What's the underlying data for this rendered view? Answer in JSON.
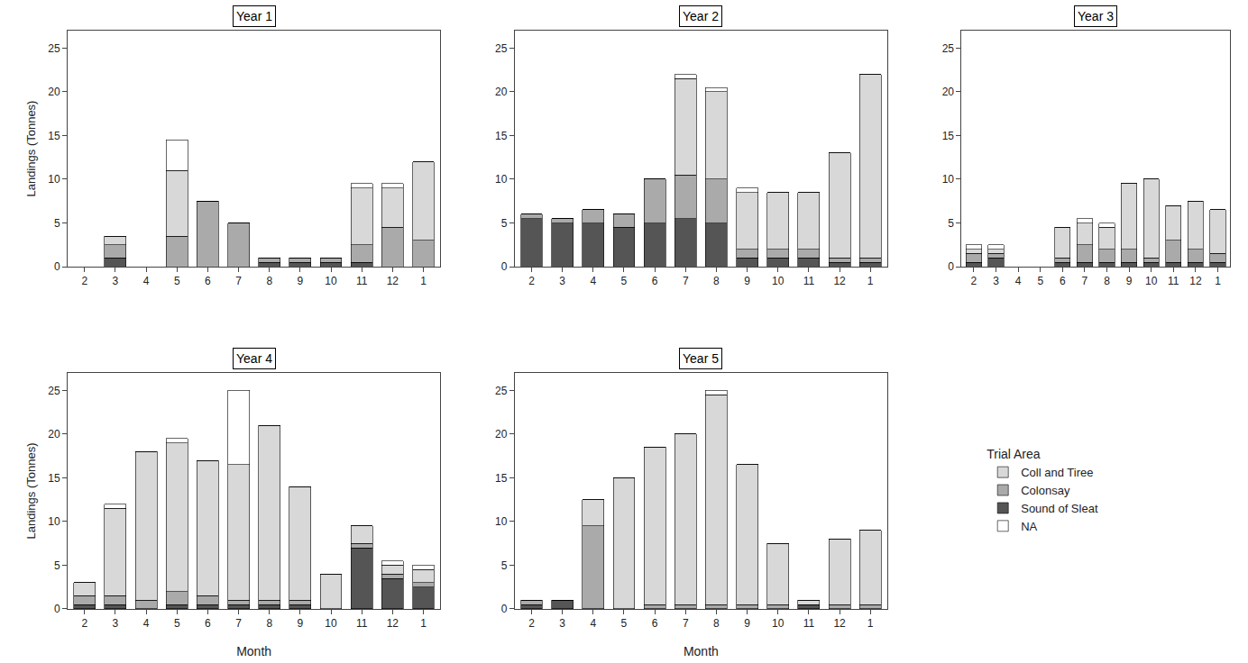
{
  "chart_data": [
    {
      "type": "bar",
      "title": "Year 1",
      "ylabel": "Landings (Tonnes)",
      "stacked": true,
      "grid": false,
      "categories": [
        "2",
        "3",
        "4",
        "5",
        "6",
        "7",
        "8",
        "9",
        "10",
        "11",
        "12",
        "1"
      ],
      "series": [
        {
          "name": "Sound of Sleat",
          "color": "#555555",
          "values": [
            0.0,
            1.0,
            0.0,
            0.0,
            0.0,
            0.0,
            0.5,
            0.5,
            0.5,
            0.5,
            0.0,
            0.0
          ]
        },
        {
          "name": "Colonsay",
          "color": "#aaaaaa",
          "values": [
            0.0,
            1.5,
            0.0,
            3.5,
            7.5,
            5.0,
            0.5,
            0.5,
            0.5,
            2.0,
            4.5,
            3.0
          ]
        },
        {
          "name": "Coll and Tiree",
          "color": "#d8d8d8",
          "values": [
            0.0,
            1.0,
            0.0,
            7.5,
            0.0,
            0.0,
            0.0,
            0.0,
            0.0,
            6.5,
            4.5,
            9.0
          ]
        },
        {
          "name": "NA",
          "color": "#ffffff",
          "values": [
            0.0,
            0.0,
            0.0,
            3.5,
            0.0,
            0.0,
            0.0,
            0.0,
            0.0,
            0.5,
            0.5,
            0.0
          ]
        }
      ],
      "ylim": [
        0,
        27
      ],
      "yticks": [
        0,
        5,
        10,
        15,
        20,
        25
      ]
    },
    {
      "type": "bar",
      "title": "Year 2",
      "stacked": true,
      "grid": false,
      "categories": [
        "2",
        "3",
        "4",
        "5",
        "6",
        "7",
        "8",
        "9",
        "10",
        "11",
        "12",
        "1"
      ],
      "series": [
        {
          "name": "Sound of Sleat",
          "color": "#555555",
          "values": [
            5.5,
            5.0,
            5.0,
            4.5,
            5.0,
            5.5,
            5.0,
            1.0,
            1.0,
            1.0,
            0.5,
            0.5
          ]
        },
        {
          "name": "Colonsay",
          "color": "#aaaaaa",
          "values": [
            0.5,
            0.5,
            1.5,
            1.5,
            5.0,
            5.0,
            5.0,
            1.0,
            1.0,
            1.0,
            0.5,
            0.5
          ]
        },
        {
          "name": "Coll and Tiree",
          "color": "#d8d8d8",
          "values": [
            0.0,
            0.0,
            0.0,
            0.0,
            0.0,
            11.0,
            10.0,
            6.5,
            6.5,
            6.5,
            12.0,
            21.0
          ]
        },
        {
          "name": "NA",
          "color": "#ffffff",
          "values": [
            0.0,
            0.0,
            0.0,
            0.0,
            0.0,
            0.5,
            0.5,
            0.5,
            0.0,
            0.0,
            0.0,
            0.0
          ]
        }
      ],
      "ylim": [
        0,
        27
      ],
      "yticks": [
        0,
        5,
        10,
        15,
        20,
        25
      ]
    },
    {
      "type": "bar",
      "title": "Year 3",
      "stacked": true,
      "grid": false,
      "categories": [
        "2",
        "3",
        "4",
        "5",
        "6",
        "7",
        "8",
        "9",
        "10",
        "11",
        "12",
        "1"
      ],
      "series": [
        {
          "name": "Sound of Sleat",
          "color": "#555555",
          "values": [
            0.5,
            1.0,
            0.0,
            0.0,
            0.5,
            0.5,
            0.5,
            0.5,
            0.5,
            0.5,
            0.5,
            0.5
          ]
        },
        {
          "name": "Colonsay",
          "color": "#aaaaaa",
          "values": [
            1.0,
            0.5,
            0.0,
            0.0,
            0.5,
            2.0,
            1.5,
            1.5,
            0.5,
            2.5,
            1.5,
            1.0
          ]
        },
        {
          "name": "Coll and Tiree",
          "color": "#d8d8d8",
          "values": [
            0.5,
            0.5,
            0.0,
            0.0,
            3.5,
            2.5,
            2.5,
            7.5,
            9.0,
            4.0,
            5.5,
            5.0
          ]
        },
        {
          "name": "NA",
          "color": "#ffffff",
          "values": [
            0.5,
            0.5,
            0.0,
            0.0,
            0.0,
            0.5,
            0.5,
            0.0,
            0.0,
            0.0,
            0.0,
            0.0
          ]
        }
      ],
      "ylim": [
        0,
        27
      ],
      "yticks": [
        0,
        5,
        10,
        15,
        20,
        25
      ]
    },
    {
      "type": "bar",
      "title": "Year 4",
      "xlabel": "Month",
      "ylabel": "Landings (Tonnes)",
      "stacked": true,
      "grid": false,
      "categories": [
        "2",
        "3",
        "4",
        "5",
        "6",
        "7",
        "8",
        "9",
        "10",
        "11",
        "12",
        "1"
      ],
      "series": [
        {
          "name": "Sound of Sleat",
          "color": "#555555",
          "values": [
            0.5,
            0.5,
            0.0,
            0.5,
            0.5,
            0.5,
            0.5,
            0.5,
            0.0,
            7.0,
            3.5,
            2.5
          ]
        },
        {
          "name": "Colonsay",
          "color": "#aaaaaa",
          "values": [
            1.0,
            1.0,
            1.0,
            1.5,
            1.0,
            0.5,
            0.5,
            0.5,
            0.0,
            0.5,
            0.5,
            0.5
          ]
        },
        {
          "name": "Coll and Tiree",
          "color": "#d8d8d8",
          "values": [
            1.5,
            10.0,
            17.0,
            17.0,
            15.5,
            15.5,
            20.0,
            13.0,
            4.0,
            2.0,
            1.0,
            1.5
          ]
        },
        {
          "name": "NA",
          "color": "#ffffff",
          "values": [
            0.0,
            0.5,
            0.0,
            0.5,
            0.0,
            8.5,
            0.0,
            0.0,
            0.0,
            0.0,
            0.5,
            0.5
          ]
        }
      ],
      "ylim": [
        0,
        27
      ],
      "yticks": [
        0,
        5,
        10,
        15,
        20,
        25
      ]
    },
    {
      "type": "bar",
      "title": "Year 5",
      "xlabel": "Month",
      "stacked": true,
      "grid": false,
      "categories": [
        "2",
        "3",
        "4",
        "5",
        "6",
        "7",
        "8",
        "9",
        "10",
        "11",
        "12",
        "1"
      ],
      "series": [
        {
          "name": "Sound of Sleat",
          "color": "#555555",
          "values": [
            0.5,
            1.0,
            0.0,
            0.0,
            0.0,
            0.0,
            0.0,
            0.0,
            0.0,
            0.5,
            0.0,
            0.0
          ]
        },
        {
          "name": "Colonsay",
          "color": "#aaaaaa",
          "values": [
            0.5,
            0.0,
            9.5,
            0.0,
            0.5,
            0.5,
            0.5,
            0.5,
            0.5,
            0.0,
            0.5,
            0.5
          ]
        },
        {
          "name": "Coll and Tiree",
          "color": "#d8d8d8",
          "values": [
            0.0,
            0.0,
            3.0,
            15.0,
            18.0,
            19.5,
            24.0,
            16.0,
            7.0,
            0.5,
            7.5,
            8.5
          ]
        },
        {
          "name": "NA",
          "color": "#ffffff",
          "values": [
            0.0,
            0.0,
            0.0,
            0.0,
            0.0,
            0.0,
            0.5,
            0.0,
            0.0,
            0.0,
            0.0,
            0.0
          ]
        }
      ],
      "ylim": [
        0,
        27
      ],
      "yticks": [
        0,
        5,
        10,
        15,
        20,
        25
      ],
      "legend": "right",
      "legend_title": "Trial Area",
      "legend_labels": [
        "Coll and Tiree",
        "Colonsay",
        "Sound of Sleat",
        "NA"
      ]
    }
  ]
}
